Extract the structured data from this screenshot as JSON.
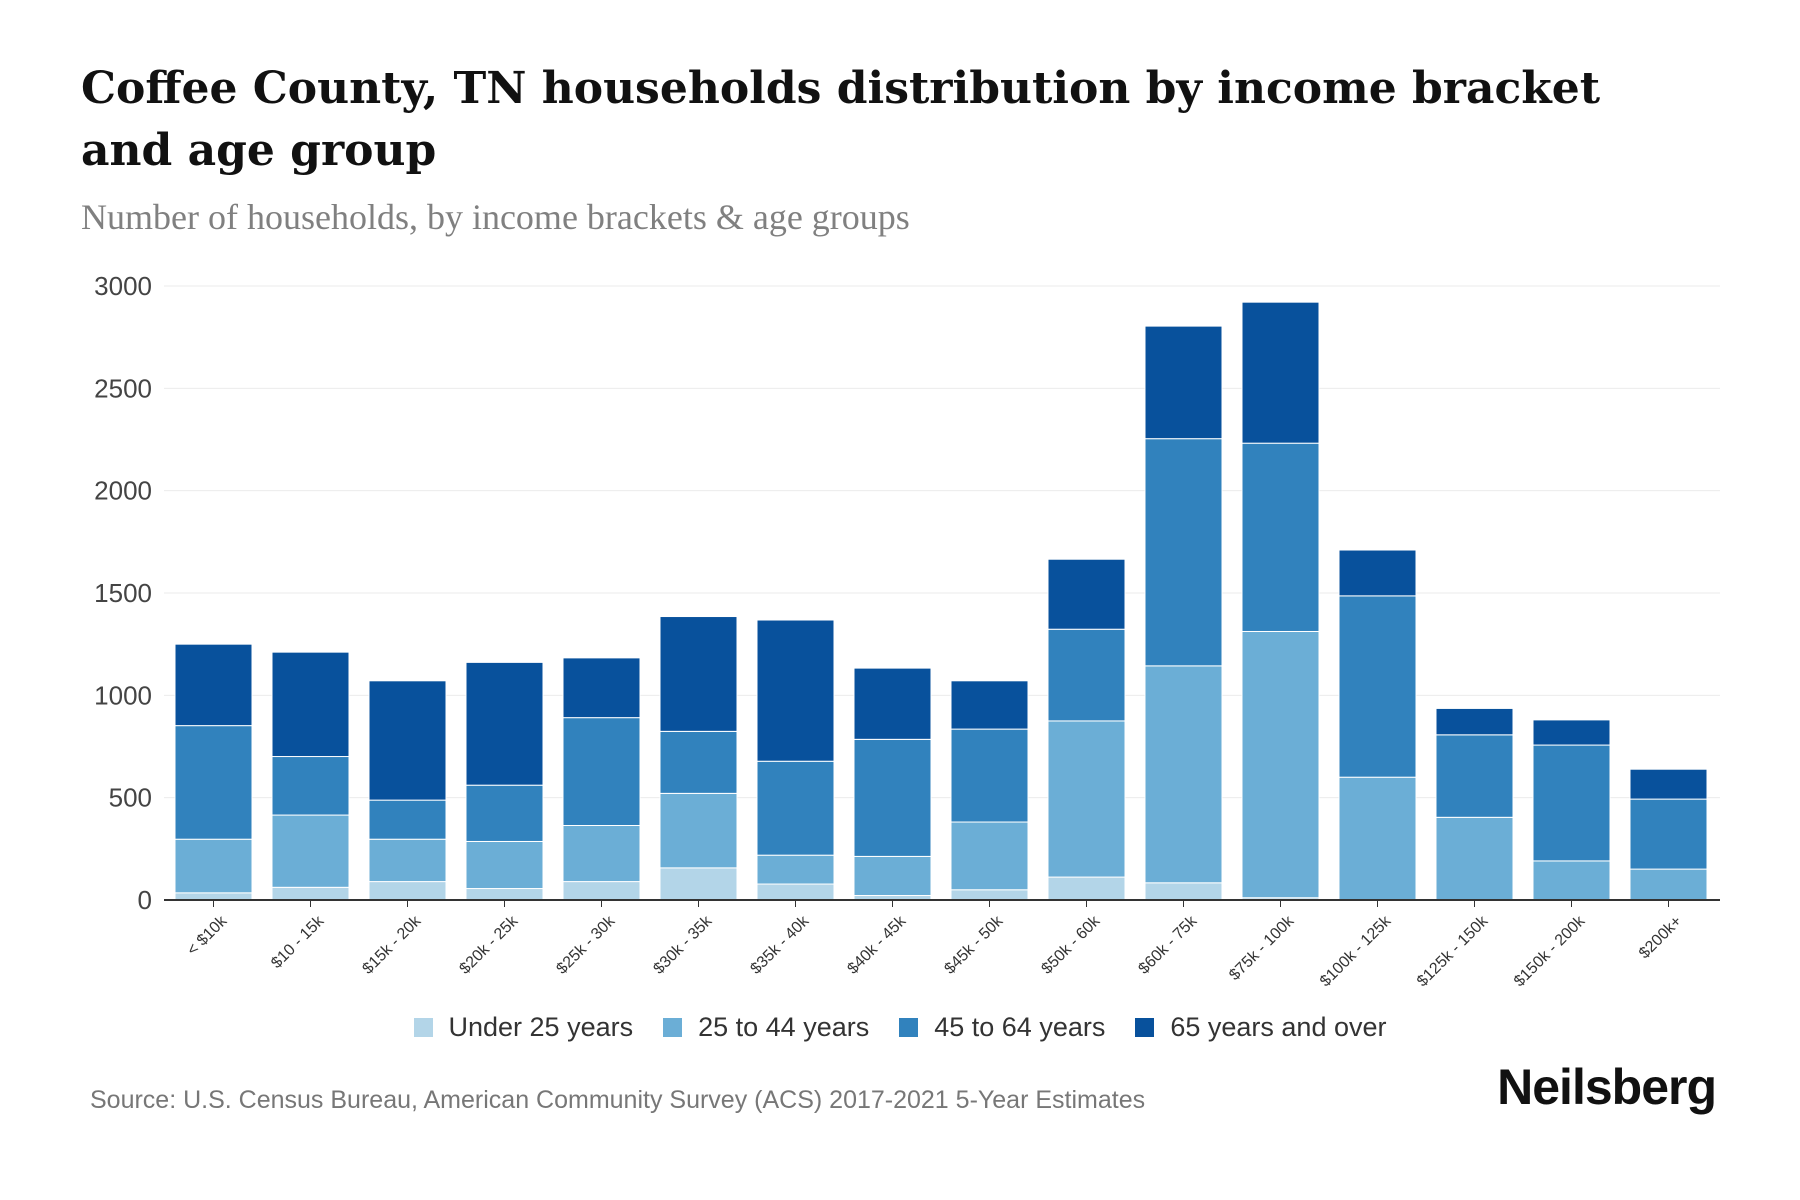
{
  "title": "Coffee County, TN households distribution by income bracket and age group",
  "subtitle": "Number of households, by income brackets & age groups",
  "source": "Source: U.S. Census Bureau, American Community Survey (ACS) 2017-2021 5-Year Estimates",
  "logo": "Neilsberg",
  "chart_data": {
    "type": "bar",
    "stacked": true,
    "title": "Coffee County, TN households distribution by income bracket and age group",
    "xlabel": "",
    "ylabel": "Number of households",
    "ylim": [
      0,
      3000
    ],
    "yticks": [
      0,
      500,
      1000,
      1500,
      2000,
      2500,
      3000
    ],
    "grid": true,
    "legend": "bottom",
    "categories": [
      "< $10k",
      "$10 - 15k",
      "$15k - 20k",
      "$20k - 25k",
      "$25k - 30k",
      "$30k - 35k",
      "$35k - 40k",
      "$40k - 45k",
      "$45k - 50k",
      "$50k - 60k",
      "$60k - 75k",
      "$75k - 100k",
      "$100k - 125k",
      "$125k - 150k",
      "$150k - 200k",
      "$200k+"
    ],
    "series": [
      {
        "name": "Under 25 years",
        "color": "#b3d5e8",
        "values": [
          35,
          62,
          90,
          56,
          90,
          157,
          78,
          22,
          50,
          112,
          84,
          11,
          0,
          0,
          0,
          0
        ]
      },
      {
        "name": "25 to 44 years",
        "color": "#6baed6",
        "values": [
          262,
          353,
          207,
          230,
          274,
          364,
          141,
          191,
          331,
          763,
          1060,
          1301,
          600,
          404,
          191,
          151
        ]
      },
      {
        "name": "45 to 64 years",
        "color": "#3182bd",
        "values": [
          555,
          286,
          191,
          275,
          527,
          303,
          459,
          572,
          454,
          448,
          1110,
          920,
          886,
          403,
          566,
          342
        ]
      },
      {
        "name": "65 years and over",
        "color": "#08519c",
        "values": [
          398,
          510,
          583,
          600,
          292,
          561,
          690,
          348,
          236,
          342,
          550,
          689,
          224,
          129,
          123,
          146
        ]
      }
    ]
  }
}
